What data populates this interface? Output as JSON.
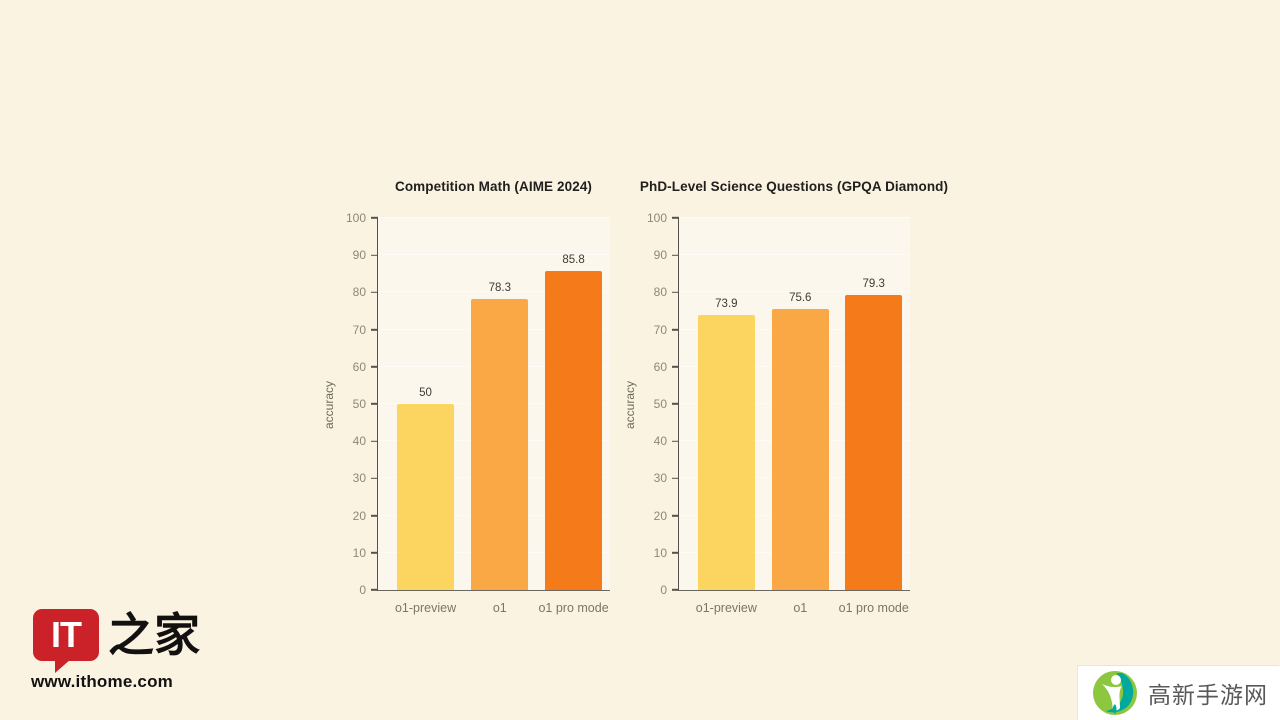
{
  "page": {
    "background": "#FBF3E2"
  },
  "chart_data": [
    {
      "type": "bar",
      "title": "Competition Math (AIME 2024)",
      "xlabel": "",
      "ylabel": "accuracy",
      "categories": [
        "o1-preview",
        "o1",
        "o1 pro mode"
      ],
      "values": [
        50,
        78.3,
        85.8
      ],
      "value_labels": [
        "50",
        "78.3",
        "85.8"
      ],
      "ylim": [
        0,
        100
      ],
      "ytick_step": 10,
      "grid": true,
      "legend_position": "none",
      "bar_colors": [
        "#FCD560",
        "#FAA845",
        "#F57B1A"
      ]
    },
    {
      "type": "bar",
      "title": "PhD-Level Science Questions (GPQA Diamond)",
      "xlabel": "",
      "ylabel": "accuracy",
      "categories": [
        "o1-preview",
        "o1",
        "o1 pro mode"
      ],
      "values": [
        73.9,
        75.6,
        79.3
      ],
      "value_labels": [
        "73.9",
        "75.6",
        "79.3"
      ],
      "ylim": [
        0,
        100
      ],
      "ytick_step": 10,
      "grid": true,
      "legend_position": "none",
      "bar_colors": [
        "#FCD560",
        "#FAA845",
        "#F57B1A"
      ]
    }
  ],
  "watermarks": {
    "ithome": {
      "bubble_text": "IT",
      "cjk_text": "之家",
      "url": "www.ithome.com",
      "brand_red": "#CB2128"
    },
    "gaoxin": {
      "text": "高新手游网",
      "logo_green": "#8DC63F",
      "logo_teal": "#00A99D"
    }
  }
}
